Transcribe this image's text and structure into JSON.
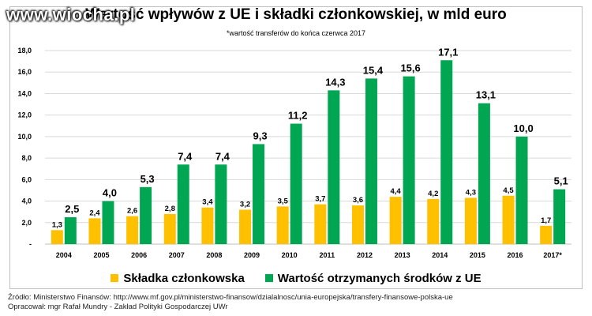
{
  "watermark": "www.wiocha.pl",
  "title": "Wartość wpływów z UE i składki członkowskiej, w mld euro",
  "subtitle": "*wartość transferów do końca czerwca 2017",
  "colors": {
    "skladka": "#ffc000",
    "srodki": "#00a651"
  },
  "chart_data": {
    "type": "bar",
    "categories": [
      "2004",
      "2005",
      "2006",
      "2007",
      "2008",
      "2009",
      "2010",
      "2011",
      "2012",
      "2013",
      "2014",
      "2015",
      "2016",
      "2017*"
    ],
    "series": [
      {
        "name": "Składka członkowska",
        "values": [
          1.3,
          2.4,
          2.6,
          2.8,
          3.4,
          3.2,
          3.5,
          3.7,
          3.6,
          4.4,
          4.2,
          4.3,
          4.5,
          1.7
        ],
        "labels": [
          "1,3",
          "2,4",
          "2,6",
          "2,8",
          "3,4",
          "3,2",
          "3,5",
          "3,7",
          "3,6",
          "4,4",
          "4,2",
          "4,3",
          "4,5",
          "1,7"
        ]
      },
      {
        "name": "Wartość otrzymanych środków z UE",
        "values": [
          2.5,
          4.0,
          5.3,
          7.4,
          7.4,
          9.3,
          11.2,
          14.3,
          15.4,
          15.6,
          17.1,
          13.1,
          10.0,
          5.1
        ],
        "labels": [
          "2,5",
          "4,0",
          "5,3",
          "7,4",
          "7,4",
          "9,3",
          "11,2",
          "14,3",
          "15,4",
          "15,6",
          "17,1",
          "13,1",
          "10,0",
          "5,1"
        ]
      }
    ],
    "y_ticks": [
      "-",
      "2,0",
      "4,0",
      "6,0",
      "8,0",
      "10,0",
      "12,0",
      "14,0",
      "16,0",
      "18,0"
    ],
    "ylim": [
      0,
      18
    ],
    "grid": true,
    "legend": "bottom"
  },
  "footer": {
    "source": "Źródło: Ministerstwo Finansów: http://www.mf.gov.pl/ministerstwo-finansow/dzialalnosc/unia-europejska/transfery-finansowe-polska-ue",
    "author": "Opracował: mgr Rafał Mundry - Zakład Polityki Gospodarczej UWr"
  }
}
